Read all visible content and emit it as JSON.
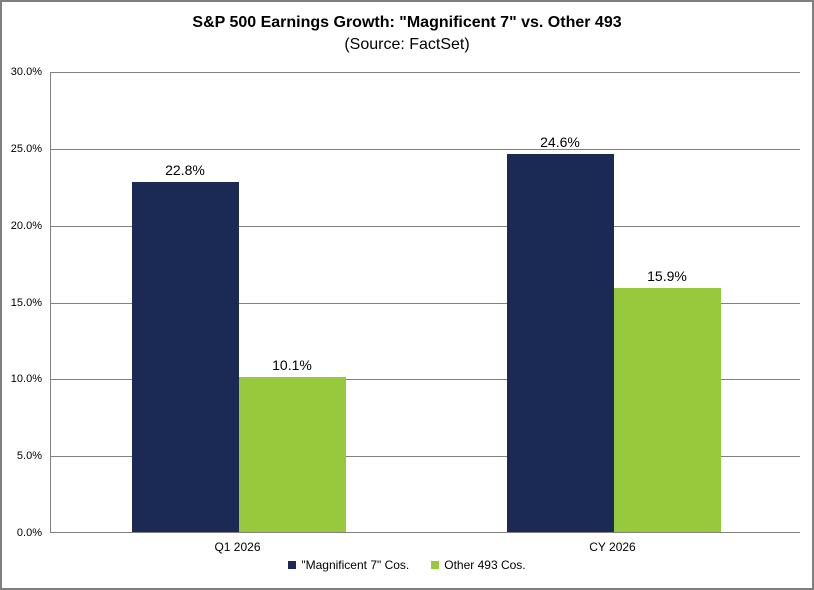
{
  "chart": {
    "title": "S&P 500 Earnings Growth: \"Magnificent 7\" vs. Other 493",
    "subtitle": "(Source: FactSet)"
  },
  "chart_data": {
    "type": "bar",
    "categories": [
      "Q1 2026",
      "CY 2026"
    ],
    "series": [
      {
        "name": "\"Magnificent 7\" Cos.",
        "color": "#1b2a55",
        "values": [
          22.8,
          24.6
        ],
        "labels": [
          "22.8%",
          "24.6%"
        ]
      },
      {
        "name": "Other 493 Cos.",
        "color": "#97c93d",
        "values": [
          10.1,
          15.9
        ],
        "labels": [
          "10.1%",
          "15.9%"
        ]
      }
    ],
    "ylim": [
      0,
      30
    ],
    "ytick_step": 5,
    "ytick_labels": [
      "0.0%",
      "5.0%",
      "10.0%",
      "15.0%",
      "20.0%",
      "25.0%",
      "30.0%"
    ],
    "grid": true,
    "legend_position": "bottom"
  }
}
